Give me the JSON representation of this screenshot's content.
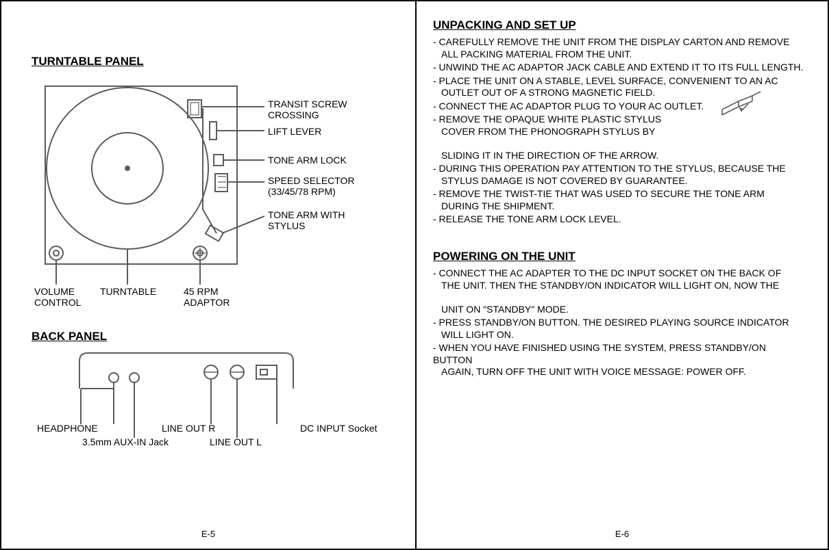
{
  "left": {
    "title1": "TURNTABLE PANEL",
    "title2": "BACK PANEL",
    "pageNum": "E-5",
    "callouts": {
      "transitScrew": "TRANSIT SCREW\nCROSSING",
      "liftLever": "LIFT LEVER",
      "toneArmLock": "TONE ARM LOCK",
      "speedSelector": "SPEED SELECTOR\n(33/45/78 RPM)",
      "toneArmStylus": "TONE ARM WITH\nSTYLUS",
      "volume": "VOLUME\nCONTROL",
      "turntable": "TURNTABLE",
      "adaptor45": "45 RPM\nADAPTOR"
    },
    "back": {
      "headphone": "HEADPHONE",
      "aux": "3.5mm AUX-IN Jack",
      "lineOutR": "LINE OUT R",
      "lineOutL": "LINE OUT L",
      "dc": "DC INPUT Socket"
    }
  },
  "right": {
    "pageNum": "E-6",
    "section1": {
      "title": "UNPACKING AND SET UP",
      "items": [
        "- CAREFULLY REMOVE THE UNIT FROM THE DISPLAY CARTON AND REMOVE\n  ALL PACKING MATERIAL FROM THE UNIT.",
        "- UNWIND THE AC ADAPTOR JACK CABLE AND EXTEND IT TO ITS FULL LENGTH.",
        "- PLACE THE UNIT ON A STABLE, LEVEL SURFACE, CONVENIENT TO AN AC\n  OUTLET OUT OF A STRONG MAGNETIC FIELD.",
        "- CONNECT THE AC ADAPTOR PLUG TO YOUR AC OUTLET.",
        "- REMOVE THE OPAQUE WHITE PLASTIC STYLUS\n  COVER FROM THE PHONOGRAPH STYLUS BY\n  SLIDING IT IN THE DIRECTION OF THE ARROW.",
        "- DURING THIS OPERATION PAY ATTENTION TO THE STYLUS, BECAUSE THE\n  STYLUS DAMAGE IS NOT COVERED BY GUARANTEE.",
        "- REMOVE THE TWIST-TIE THAT WAS USED TO SECURE THE TONE ARM\n  DURING THE SHIPMENT.",
        "- RELEASE THE TONE ARM LOCK LEVEL."
      ]
    },
    "section2": {
      "title": "POWERING ON THE UNIT",
      "items": [
        "- CONNECT THE AC ADAPTER TO THE DC INPUT SOCKET ON THE BACK OF\n  THE UNIT. THEN THE STANDBY/ON INDICATOR WILL LIGHT ON, NOW THE\n  UNIT ON \"STANDBY\" MODE.",
        "- PRESS STANDBY/ON BUTTON. THE DESIRED PLAYING SOURCE INDICATOR\n  WILL LIGHT ON.",
        "- WHEN YOU HAVE FINISHED USING THE SYSTEM, PRESS STANDBY/ON BUTTON\n  AGAIN, TURN OFF THE UNIT WITH VOICE MESSAGE: POWER OFF."
      ]
    }
  },
  "colors": {
    "fg": "#000000",
    "bg": "#ffffff",
    "diagram_stroke": "#5b5b5b"
  }
}
